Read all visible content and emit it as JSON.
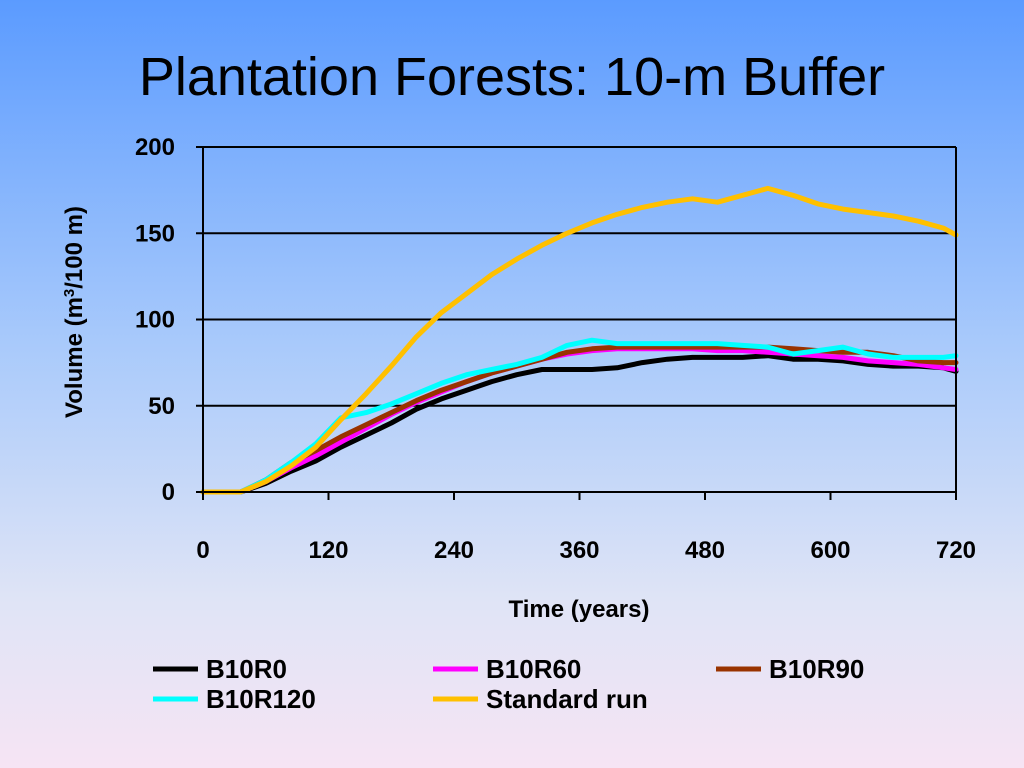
{
  "slide": {
    "title": "Plantation Forests: 10-m Buffer"
  },
  "chart_data": {
    "type": "line",
    "title": "Plantation Forests: 10-m Buffer",
    "xlabel": "Time (years)",
    "ylabel_parts": {
      "before": "Volume (m",
      "sup": "3",
      "after": "/100 m)"
    },
    "xlim": [
      0,
      720
    ],
    "ylim": [
      0,
      200
    ],
    "xticks": [
      0,
      120,
      240,
      360,
      480,
      600,
      720
    ],
    "yticks": [
      0,
      50,
      100,
      150,
      200
    ],
    "grid": "horizontal",
    "legend_position": "bottom",
    "series": [
      {
        "name": "B10R0",
        "color": "#000000",
        "points": [
          [
            0,
            0
          ],
          [
            36,
            0
          ],
          [
            60,
            5
          ],
          [
            84,
            12
          ],
          [
            108,
            18
          ],
          [
            132,
            26
          ],
          [
            156,
            33
          ],
          [
            180,
            40
          ],
          [
            204,
            48
          ],
          [
            228,
            54
          ],
          [
            252,
            59
          ],
          [
            276,
            64
          ],
          [
            300,
            68
          ],
          [
            324,
            71
          ],
          [
            348,
            71
          ],
          [
            372,
            71
          ],
          [
            396,
            72
          ],
          [
            420,
            75
          ],
          [
            444,
            77
          ],
          [
            468,
            78
          ],
          [
            492,
            78
          ],
          [
            516,
            78
          ],
          [
            540,
            79
          ],
          [
            564,
            77
          ],
          [
            588,
            77
          ],
          [
            612,
            76
          ],
          [
            636,
            74
          ],
          [
            660,
            73
          ],
          [
            684,
            73
          ],
          [
            708,
            72
          ],
          [
            720,
            70
          ]
        ]
      },
      {
        "name": "B10R60",
        "color": "#ff00ff",
        "points": [
          [
            0,
            0
          ],
          [
            36,
            0
          ],
          [
            60,
            6
          ],
          [
            84,
            14
          ],
          [
            108,
            21
          ],
          [
            132,
            29
          ],
          [
            156,
            37
          ],
          [
            180,
            45
          ],
          [
            204,
            52
          ],
          [
            228,
            58
          ],
          [
            252,
            64
          ],
          [
            276,
            69
          ],
          [
            300,
            73
          ],
          [
            324,
            77
          ],
          [
            348,
            80
          ],
          [
            372,
            82
          ],
          [
            396,
            83
          ],
          [
            420,
            83
          ],
          [
            444,
            83
          ],
          [
            468,
            83
          ],
          [
            492,
            82
          ],
          [
            516,
            82
          ],
          [
            540,
            81
          ],
          [
            564,
            80
          ],
          [
            588,
            79
          ],
          [
            612,
            78
          ],
          [
            636,
            76
          ],
          [
            660,
            75
          ],
          [
            684,
            74
          ],
          [
            708,
            72
          ],
          [
            720,
            71
          ]
        ]
      },
      {
        "name": "B10R90",
        "color": "#993300",
        "points": [
          [
            0,
            0
          ],
          [
            36,
            0
          ],
          [
            60,
            7
          ],
          [
            84,
            17
          ],
          [
            108,
            24
          ],
          [
            132,
            32
          ],
          [
            156,
            39
          ],
          [
            180,
            46
          ],
          [
            204,
            53
          ],
          [
            228,
            59
          ],
          [
            252,
            64
          ],
          [
            276,
            69
          ],
          [
            300,
            73
          ],
          [
            324,
            77
          ],
          [
            348,
            81
          ],
          [
            372,
            83
          ],
          [
            396,
            84
          ],
          [
            420,
            84
          ],
          [
            444,
            84
          ],
          [
            468,
            84
          ],
          [
            492,
            84
          ],
          [
            516,
            84
          ],
          [
            540,
            84
          ],
          [
            564,
            83
          ],
          [
            588,
            82
          ],
          [
            612,
            81
          ],
          [
            636,
            81
          ],
          [
            660,
            79
          ],
          [
            684,
            76
          ],
          [
            708,
            75
          ],
          [
            720,
            75
          ]
        ]
      },
      {
        "name": "B10R120",
        "color": "#00ffff",
        "points": [
          [
            0,
            0
          ],
          [
            36,
            0
          ],
          [
            60,
            7
          ],
          [
            84,
            17
          ],
          [
            108,
            28
          ],
          [
            132,
            43
          ],
          [
            156,
            46
          ],
          [
            180,
            51
          ],
          [
            204,
            57
          ],
          [
            228,
            63
          ],
          [
            252,
            68
          ],
          [
            276,
            71
          ],
          [
            300,
            74
          ],
          [
            324,
            78
          ],
          [
            348,
            85
          ],
          [
            372,
            88
          ],
          [
            396,
            86
          ],
          [
            420,
            86
          ],
          [
            444,
            86
          ],
          [
            468,
            86
          ],
          [
            492,
            86
          ],
          [
            516,
            85
          ],
          [
            540,
            84
          ],
          [
            564,
            80
          ],
          [
            588,
            82
          ],
          [
            612,
            84
          ],
          [
            636,
            80
          ],
          [
            660,
            78
          ],
          [
            684,
            78
          ],
          [
            708,
            78
          ],
          [
            720,
            79
          ]
        ]
      },
      {
        "name": "Standard run",
        "color": "#ffc000",
        "points": [
          [
            0,
            0
          ],
          [
            36,
            0
          ],
          [
            60,
            6
          ],
          [
            84,
            15
          ],
          [
            108,
            26
          ],
          [
            132,
            42
          ],
          [
            156,
            57
          ],
          [
            180,
            73
          ],
          [
            204,
            90
          ],
          [
            228,
            104
          ],
          [
            252,
            115
          ],
          [
            276,
            126
          ],
          [
            300,
            135
          ],
          [
            324,
            143
          ],
          [
            348,
            150
          ],
          [
            372,
            156
          ],
          [
            396,
            161
          ],
          [
            420,
            165
          ],
          [
            444,
            168
          ],
          [
            468,
            170
          ],
          [
            492,
            168
          ],
          [
            516,
            172
          ],
          [
            540,
            176
          ],
          [
            564,
            172
          ],
          [
            588,
            167
          ],
          [
            612,
            164
          ],
          [
            636,
            162
          ],
          [
            660,
            160
          ],
          [
            684,
            157
          ],
          [
            708,
            153
          ],
          [
            720,
            149
          ]
        ]
      }
    ]
  }
}
